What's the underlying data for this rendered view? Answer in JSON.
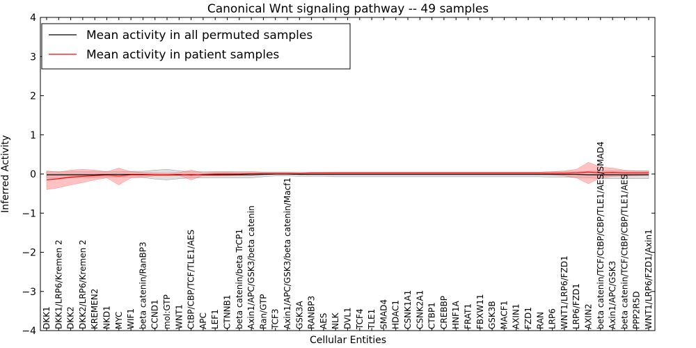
{
  "chart_data": {
    "type": "line",
    "title": "Canonical Wnt signaling pathway -- 49 samples",
    "xlabel": "Cellular Entities",
    "ylabel": "Inferred Activity",
    "ylim": [
      -4,
      4
    ],
    "yticks": [
      "−4",
      "−3",
      "−2",
      "−1",
      "0",
      "1",
      "2",
      "3",
      "4"
    ],
    "legend": {
      "placement": "top-left",
      "entries": [
        {
          "label": "Mean activity in all permuted samples",
          "color": "#000000"
        },
        {
          "label": "Mean activity in patient samples",
          "color": "#ff0000"
        }
      ]
    },
    "categories": [
      "DKK1",
      "DKK1/LRP6/Kremen 2",
      "DKK2",
      "DKK2/LRP6/Kremen 2",
      "KREMEN2",
      "NKD1",
      "MYC",
      "WIF1",
      "beta catenin/RanBP3",
      "CCND1",
      "mol:GTP",
      "WNT1",
      "CtBP/CBP/TCF/TLE1/AES",
      "APC",
      "LEF1",
      "CTNNB1",
      "beta catenin/beta TrCP1",
      "Axin1/APC/GSK3/beta catenin",
      "Ran/GTP",
      "TCF3",
      "Axin1/APC/GSK3/beta catenin/Macf1",
      "GSK3A",
      "RANBP3",
      "AES",
      "NLK",
      "DVL1",
      "TCF4",
      "TLE1",
      "SMAD4",
      "HDAC1",
      "CSNK1A1",
      "CSNK2A1",
      "CTBP1",
      "CREBBP",
      "HNF1A",
      "FRAT1",
      "FBXW11",
      "GSK3B",
      "MACF1",
      "AXIN1",
      "FZD1",
      "RAN",
      "LRP6",
      "WNT1/LRP6/FZD1",
      "LRP6/FZD1",
      "AXIN2",
      "beta catenin/TCF/CtBP/CBP/TLE1/AES/SMAD4",
      "Axin1/APC/GSK3",
      "beta catenin/TCF/CtBP/CBP/TLE1/AES",
      "PPP2R5D",
      "WNT1/LRP6/FZD1/Axin1"
    ],
    "series": [
      {
        "name": "Mean activity in all permuted samples",
        "color": "#000000",
        "band_color": "#c8c8c8",
        "values": [
          -0.02,
          -0.02,
          -0.02,
          -0.02,
          -0.02,
          -0.01,
          -0.01,
          -0.01,
          -0.01,
          -0.02,
          -0.02,
          -0.02,
          -0.02,
          -0.02,
          -0.02,
          -0.02,
          -0.02,
          -0.02,
          -0.01,
          0.0,
          0.0,
          -0.01,
          -0.01,
          -0.01,
          -0.01,
          -0.01,
          -0.01,
          -0.01,
          -0.01,
          -0.01,
          -0.01,
          -0.01,
          -0.01,
          -0.01,
          -0.01,
          -0.01,
          -0.01,
          -0.01,
          -0.01,
          -0.01,
          -0.01,
          -0.01,
          -0.01,
          -0.01,
          -0.01,
          -0.02,
          -0.02,
          -0.02,
          -0.02,
          -0.02,
          -0.02
        ],
        "lower": [
          -0.1,
          -0.1,
          -0.1,
          -0.1,
          -0.1,
          -0.09,
          -0.08,
          -0.09,
          -0.09,
          -0.13,
          -0.15,
          -0.12,
          -0.1,
          -0.1,
          -0.1,
          -0.1,
          -0.1,
          -0.1,
          -0.07,
          -0.05,
          -0.05,
          -0.06,
          -0.06,
          -0.06,
          -0.07,
          -0.07,
          -0.07,
          -0.07,
          -0.07,
          -0.07,
          -0.07,
          -0.07,
          -0.07,
          -0.07,
          -0.07,
          -0.07,
          -0.07,
          -0.07,
          -0.07,
          -0.07,
          -0.07,
          -0.07,
          -0.08,
          -0.08,
          -0.09,
          -0.1,
          -0.12,
          -0.12,
          -0.12,
          -0.12,
          -0.12
        ],
        "upper": [
          0.06,
          0.06,
          0.06,
          0.06,
          0.06,
          0.06,
          0.06,
          0.07,
          0.07,
          0.1,
          0.12,
          0.08,
          0.06,
          0.06,
          0.06,
          0.06,
          0.06,
          0.06,
          0.05,
          0.05,
          0.05,
          0.04,
          0.04,
          0.04,
          0.05,
          0.05,
          0.05,
          0.05,
          0.05,
          0.05,
          0.05,
          0.05,
          0.05,
          0.05,
          0.05,
          0.05,
          0.05,
          0.05,
          0.05,
          0.05,
          0.05,
          0.05,
          0.06,
          0.06,
          0.06,
          0.07,
          0.08,
          0.08,
          0.08,
          0.08,
          0.08
        ]
      },
      {
        "name": "Mean activity in patient samples",
        "color": "#ff0000",
        "band_color": "#ff9090",
        "values": [
          -0.15,
          -0.12,
          -0.08,
          -0.06,
          -0.04,
          -0.03,
          -0.05,
          -0.02,
          -0.02,
          -0.02,
          -0.02,
          -0.01,
          -0.03,
          -0.01,
          0.0,
          0.0,
          0.0,
          0.01,
          0.01,
          0.01,
          0.01,
          0.01,
          0.02,
          0.02,
          0.02,
          0.02,
          0.02,
          0.02,
          0.02,
          0.02,
          0.02,
          0.02,
          0.02,
          0.02,
          0.02,
          0.02,
          0.02,
          0.02,
          0.02,
          0.02,
          0.02,
          0.02,
          0.02,
          0.02,
          0.03,
          0.05,
          0.03,
          0.04,
          0.03,
          0.03,
          0.03
        ],
        "lower": [
          -0.4,
          -0.35,
          -0.28,
          -0.22,
          -0.15,
          -0.1,
          -0.28,
          -0.1,
          -0.08,
          -0.05,
          -0.05,
          -0.04,
          -0.15,
          -0.04,
          -0.05,
          -0.04,
          -0.03,
          -0.02,
          -0.01,
          -0.01,
          -0.01,
          -0.01,
          -0.01,
          -0.01,
          -0.01,
          -0.01,
          -0.01,
          -0.01,
          -0.01,
          -0.01,
          -0.01,
          -0.01,
          -0.01,
          -0.01,
          -0.01,
          -0.01,
          -0.01,
          -0.01,
          -0.01,
          -0.01,
          -0.01,
          -0.01,
          -0.02,
          -0.05,
          -0.1,
          -0.25,
          -0.1,
          -0.06,
          -0.05,
          -0.04,
          -0.03
        ],
        "upper": [
          0.08,
          0.05,
          0.1,
          0.12,
          0.1,
          0.06,
          0.15,
          0.06,
          0.04,
          0.03,
          0.02,
          0.04,
          0.1,
          0.03,
          0.05,
          0.05,
          0.04,
          0.04,
          0.04,
          0.04,
          0.04,
          0.04,
          0.05,
          0.05,
          0.05,
          0.05,
          0.05,
          0.05,
          0.05,
          0.05,
          0.05,
          0.05,
          0.05,
          0.05,
          0.05,
          0.05,
          0.05,
          0.05,
          0.05,
          0.05,
          0.05,
          0.05,
          0.06,
          0.08,
          0.12,
          0.3,
          0.18,
          0.15,
          0.1,
          0.08,
          0.07
        ]
      }
    ]
  }
}
